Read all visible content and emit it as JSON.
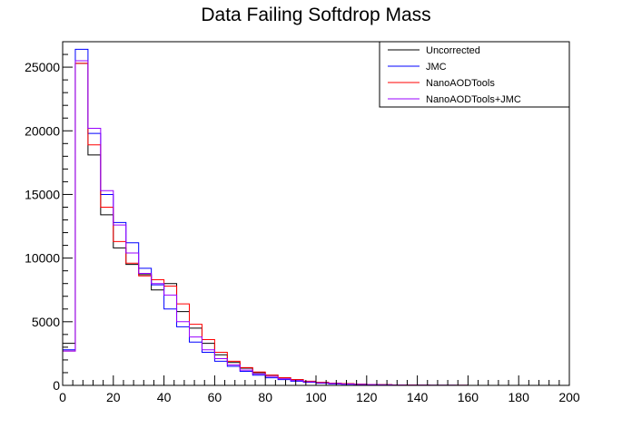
{
  "chart_data": {
    "type": "line",
    "title": "Data Failing Softdrop Mass",
    "xlabel": "",
    "ylabel": "",
    "xlim": [
      0,
      200
    ],
    "ylim": [
      0,
      27000
    ],
    "x_ticks": [
      0,
      20,
      40,
      60,
      80,
      100,
      120,
      140,
      160,
      180,
      200
    ],
    "y_ticks": [
      0,
      5000,
      10000,
      15000,
      20000,
      25000
    ],
    "bin_width": 5,
    "grid": false,
    "legend_position": "top-right",
    "bin_edges": [
      0,
      5,
      10,
      15,
      20,
      25,
      30,
      35,
      40,
      45,
      50,
      55,
      60,
      65,
      70,
      75,
      80,
      85,
      90,
      95,
      100,
      105,
      110,
      115,
      120,
      125,
      130,
      135,
      140,
      145,
      150,
      155,
      160,
      165,
      170,
      175,
      180,
      185,
      190,
      195,
      200
    ],
    "series": [
      {
        "name": "Uncorrected",
        "color": "#000000",
        "values": [
          3300,
          25300,
          18100,
          13400,
          10800,
          9500,
          8700,
          7500,
          8000,
          5800,
          4500,
          3300,
          2400,
          1800,
          1350,
          1000,
          800,
          600,
          450,
          320,
          230,
          170,
          130,
          90,
          70,
          50,
          35,
          25,
          18,
          12,
          8,
          6,
          4,
          3,
          2,
          2,
          1,
          1,
          1,
          1
        ]
      },
      {
        "name": "JMC",
        "color": "#0000ff",
        "values": [
          2800,
          26400,
          19800,
          15000,
          12800,
          11200,
          9200,
          7900,
          6000,
          4600,
          3400,
          2600,
          1900,
          1500,
          1100,
          800,
          600,
          450,
          330,
          240,
          170,
          120,
          90,
          60,
          45,
          32,
          23,
          16,
          11,
          7,
          5,
          3,
          2,
          2,
          1,
          1,
          1,
          1,
          0,
          0
        ]
      },
      {
        "name": "NanoAODTools",
        "color": "#ff0000",
        "values": [
          2700,
          25300,
          18900,
          14000,
          11300,
          9600,
          8600,
          8300,
          7800,
          6400,
          4800,
          3600,
          2600,
          1900,
          1400,
          1050,
          800,
          600,
          450,
          330,
          240,
          180,
          130,
          95,
          70,
          50,
          36,
          26,
          18,
          12,
          8,
          6,
          4,
          3,
          2,
          1,
          1,
          1,
          1,
          0
        ]
      },
      {
        "name": "NanoAODTools+JMC",
        "color": "#9900ff",
        "values": [
          2700,
          25500,
          20200,
          15300,
          12600,
          10400,
          8800,
          8000,
          7100,
          5000,
          3800,
          2800,
          2100,
          1600,
          1200,
          900,
          700,
          520,
          380,
          280,
          200,
          150,
          110,
          80,
          60,
          42,
          30,
          21,
          15,
          10,
          7,
          5,
          3,
          2,
          1,
          1,
          1,
          1,
          0,
          0
        ]
      }
    ]
  }
}
